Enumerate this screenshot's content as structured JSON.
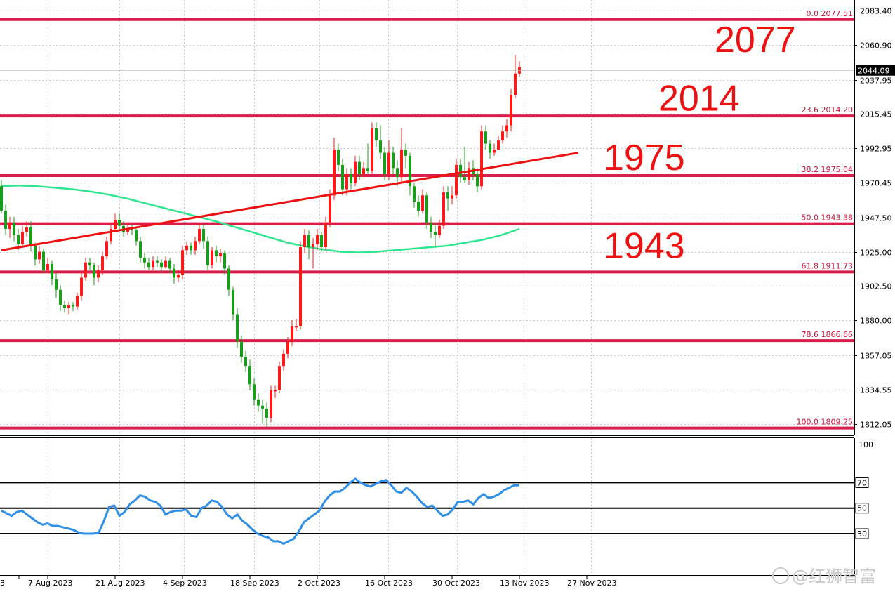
{
  "chart_data": [
    {
      "type": "candlestick",
      "ylim": [
        1800,
        2095
      ],
      "y_ticks": [
        "2083.40",
        "2060.90",
        "2037.95",
        "2015.45",
        "1992.95",
        "1970.45",
        "1947.50",
        "1925.00",
        "1902.50",
        "1880.00",
        "1857.05",
        "1834.55",
        "1812.05"
      ],
      "last_price": "2044.09",
      "x_tick_labels": [
        "3",
        "7 Aug 2023",
        "21 Aug 2023",
        "4 Sep 2023",
        "18 Sep 2023",
        "2 Oct 2023",
        "16 Oct 2023",
        "30 Oct 2023",
        "13 Nov 2023",
        "27 Nov 2023"
      ],
      "fibonacci_levels": [
        {
          "label": "0.0 2077.51",
          "value": 2077.51
        },
        {
          "label": "23.6 2014.20",
          "value": 2014.2
        },
        {
          "label": "38.2 1975.04",
          "value": 1975.04
        },
        {
          "label": "50.0 1943.38",
          "value": 1943.38
        },
        {
          "label": "61.8 1911.73",
          "value": 1911.73
        },
        {
          "label": "78.6 1866.66",
          "value": 1866.66
        },
        {
          "label": "100.0 1809.25",
          "value": 1809.25
        }
      ],
      "annotations": [
        {
          "text": "2077",
          "value": 2077
        },
        {
          "text": "2014",
          "value": 2014
        },
        {
          "text": "1975",
          "value": 1975
        },
        {
          "text": "1943",
          "value": 1943
        }
      ],
      "trendline": {
        "start": {
          "bar": 0,
          "value": 1926
        },
        "end": {
          "bar": 137,
          "value": 1990
        }
      },
      "moving_average": [
        1968,
        1968.5,
        1968,
        1967,
        1966,
        1964.5,
        1962.5,
        1960,
        1957,
        1954,
        1951,
        1948,
        1945,
        1941.5,
        1938,
        1934.5,
        1931,
        1928.5,
        1926.5,
        1925,
        1924.5,
        1925,
        1926,
        1927,
        1928,
        1929,
        1931,
        1933,
        1936,
        1940
      ],
      "candles": [
        [
          1968,
          1952,
          1972,
          1950
        ],
        [
          1952,
          1940,
          1956,
          1936
        ],
        [
          1940,
          1944,
          1948,
          1934
        ],
        [
          1944,
          1936,
          1948,
          1932
        ],
        [
          1936,
          1930,
          1940,
          1926
        ],
        [
          1930,
          1938,
          1942,
          1928
        ],
        [
          1938,
          1941,
          1945,
          1935
        ],
        [
          1941,
          1929,
          1945,
          1925
        ],
        [
          1929,
          1920,
          1931,
          1916
        ],
        [
          1920,
          1925,
          1929,
          1917
        ],
        [
          1925,
          1913,
          1927,
          1911
        ],
        [
          1913,
          1917,
          1921,
          1911
        ],
        [
          1917,
          1907,
          1919,
          1903
        ],
        [
          1907,
          1900,
          1911,
          1895
        ],
        [
          1900,
          1890,
          1903,
          1886
        ],
        [
          1890,
          1888,
          1893,
          1885
        ],
        [
          1888,
          1890,
          1892,
          1884
        ],
        [
          1890,
          1889,
          1892,
          1886
        ],
        [
          1889,
          1896,
          1898,
          1887
        ],
        [
          1896,
          1908,
          1912,
          1893
        ],
        [
          1908,
          1918,
          1921,
          1906
        ],
        [
          1918,
          1916,
          1921,
          1913
        ],
        [
          1916,
          1908,
          1918,
          1903
        ],
        [
          1908,
          1913,
          1916,
          1905
        ],
        [
          1913,
          1922,
          1925,
          1910
        ],
        [
          1922,
          1932,
          1935,
          1920
        ],
        [
          1932,
          1940,
          1944,
          1930
        ],
        [
          1940,
          1946,
          1950,
          1938
        ],
        [
          1946,
          1942,
          1950,
          1939
        ],
        [
          1942,
          1938,
          1945,
          1935
        ],
        [
          1938,
          1940,
          1944,
          1936
        ],
        [
          1940,
          1939,
          1943,
          1936
        ],
        [
          1939,
          1932,
          1941,
          1929
        ],
        [
          1932,
          1921,
          1935,
          1918
        ],
        [
          1921,
          1918,
          1924,
          1914
        ],
        [
          1918,
          1915,
          1921,
          1913
        ],
        [
          1915,
          1919,
          1922,
          1913
        ],
        [
          1919,
          1918,
          1922,
          1915
        ],
        [
          1918,
          1915,
          1920,
          1912
        ],
        [
          1915,
          1919,
          1922,
          1914
        ],
        [
          1919,
          1914,
          1921,
          1911
        ],
        [
          1914,
          1908,
          1917,
          1904
        ],
        [
          1908,
          1910,
          1913,
          1905
        ],
        [
          1910,
          1926,
          1929,
          1907
        ],
        [
          1926,
          1929,
          1932,
          1923
        ],
        [
          1929,
          1926,
          1931,
          1923
        ],
        [
          1926,
          1932,
          1935,
          1923
        ],
        [
          1932,
          1940,
          1944,
          1930
        ],
        [
          1940,
          1932,
          1943,
          1927
        ],
        [
          1932,
          1916,
          1935,
          1913
        ],
        [
          1916,
          1926,
          1928,
          1914
        ],
        [
          1926,
          1922,
          1929,
          1918
        ],
        [
          1922,
          1924,
          1927,
          1918
        ],
        [
          1924,
          1914,
          1926,
          1910
        ],
        [
          1914,
          1900,
          1916,
          1896
        ],
        [
          1900,
          1884,
          1902,
          1880
        ],
        [
          1884,
          1866,
          1888,
          1862
        ],
        [
          1866,
          1856,
          1870,
          1852
        ],
        [
          1856,
          1850,
          1860,
          1846
        ],
        [
          1850,
          1838,
          1854,
          1834
        ],
        [
          1838,
          1828,
          1842,
          1824
        ],
        [
          1828,
          1824,
          1832,
          1820
        ],
        [
          1824,
          1822,
          1828,
          1812
        ],
        [
          1822,
          1816,
          1826,
          1810
        ],
        [
          1816,
          1834,
          1837,
          1813
        ],
        [
          1834,
          1834,
          1837,
          1829
        ],
        [
          1834,
          1850,
          1853,
          1832
        ],
        [
          1850,
          1858,
          1861,
          1847
        ],
        [
          1858,
          1866,
          1869,
          1855
        ],
        [
          1866,
          1876,
          1880,
          1863
        ],
        [
          1876,
          1876,
          1881,
          1873
        ],
        [
          1876,
          1928,
          1932,
          1874
        ],
        [
          1928,
          1936,
          1940,
          1924
        ],
        [
          1936,
          1928,
          1939,
          1920
        ],
        [
          1928,
          1930,
          1934,
          1914
        ],
        [
          1930,
          1936,
          1940,
          1926
        ],
        [
          1936,
          1928,
          1938,
          1925
        ],
        [
          1928,
          1944,
          1948,
          1926
        ],
        [
          1944,
          1962,
          1966,
          1941
        ],
        [
          1962,
          1992,
          2000,
          1959
        ],
        [
          1992,
          1982,
          1996,
          1978
        ],
        [
          1982,
          1966,
          1986,
          1962
        ],
        [
          1966,
          1976,
          1980,
          1962
        ],
        [
          1976,
          1970,
          1980,
          1966
        ],
        [
          1970,
          1984,
          1988,
          1968
        ],
        [
          1984,
          1976,
          1988,
          1972
        ],
        [
          1976,
          1980,
          1984,
          1974
        ],
        [
          1980,
          1978,
          1996,
          1976
        ],
        [
          1978,
          2006,
          2010,
          1976
        ],
        [
          2006,
          1998,
          2010,
          1994
        ],
        [
          1998,
          1990,
          2008,
          1986
        ],
        [
          1990,
          1976,
          1994,
          1972
        ],
        [
          1976,
          1990,
          1998,
          1972
        ],
        [
          1990,
          1980,
          1994,
          1976
        ],
        [
          1980,
          1974,
          1985,
          1968
        ],
        [
          1974,
          1992,
          2006,
          1970
        ],
        [
          1992,
          1988,
          1996,
          1980
        ],
        [
          1988,
          1968,
          1990,
          1962
        ],
        [
          1968,
          1958,
          1970,
          1954
        ],
        [
          1958,
          1952,
          1962,
          1948
        ],
        [
          1952,
          1962,
          1966,
          1950
        ],
        [
          1962,
          1944,
          1964,
          1940
        ],
        [
          1944,
          1938,
          1948,
          1934
        ],
        [
          1938,
          1936,
          1944,
          1928
        ],
        [
          1936,
          1942,
          1946,
          1934
        ],
        [
          1942,
          1964,
          1968,
          1940
        ],
        [
          1964,
          1960,
          1968,
          1952
        ],
        [
          1960,
          1962,
          1968,
          1956
        ],
        [
          1962,
          1982,
          1986,
          1960
        ],
        [
          1982,
          1974,
          1986,
          1970
        ],
        [
          1974,
          1972,
          1994,
          1970
        ],
        [
          1972,
          1980,
          1984,
          1969
        ],
        [
          1980,
          1976,
          1985,
          1972
        ],
        [
          1976,
          1968,
          1980,
          1964
        ],
        [
          1968,
          2004,
          2008,
          1966
        ],
        [
          2004,
          1996,
          2008,
          1992
        ],
        [
          1996,
          1990,
          1998,
          1986
        ],
        [
          1990,
          1992,
          1996,
          1988
        ],
        [
          1992,
          1998,
          2001,
          1992
        ],
        [
          1998,
          2004,
          2008,
          1996
        ],
        [
          2004,
          2008,
          2012,
          2000
        ],
        [
          2008,
          2028,
          2032,
          2004
        ],
        [
          2028,
          2042,
          2054,
          2026
        ],
        [
          2042,
          2046,
          2050,
          2040
        ]
      ]
    },
    {
      "type": "line",
      "ylim": [
        0,
        100
      ],
      "y_ticks": [
        "100"
      ],
      "levels": [
        "70",
        "50",
        "30"
      ],
      "values": [
        48,
        46,
        44,
        47,
        48,
        45,
        42,
        39,
        37,
        38,
        36,
        36,
        35,
        34,
        33,
        31,
        30,
        30,
        30,
        31,
        40,
        51,
        52,
        44,
        47,
        53,
        56,
        60,
        59,
        56,
        55,
        52,
        45,
        47,
        48,
        48,
        49,
        44,
        43,
        50,
        52,
        56,
        55,
        51,
        45,
        42,
        45,
        40,
        37,
        33,
        30,
        28,
        27,
        24,
        24,
        22,
        24,
        26,
        32,
        39,
        42,
        45,
        48,
        55,
        60,
        63,
        63,
        66,
        70,
        73,
        70,
        68,
        67,
        69,
        71,
        72,
        68,
        63,
        62,
        66,
        63,
        59,
        54,
        51,
        52,
        48,
        44,
        45,
        49,
        55,
        55,
        56,
        53,
        58,
        61,
        58,
        59,
        61,
        64,
        66,
        68,
        68
      ]
    }
  ],
  "watermark": "@红狮智富"
}
